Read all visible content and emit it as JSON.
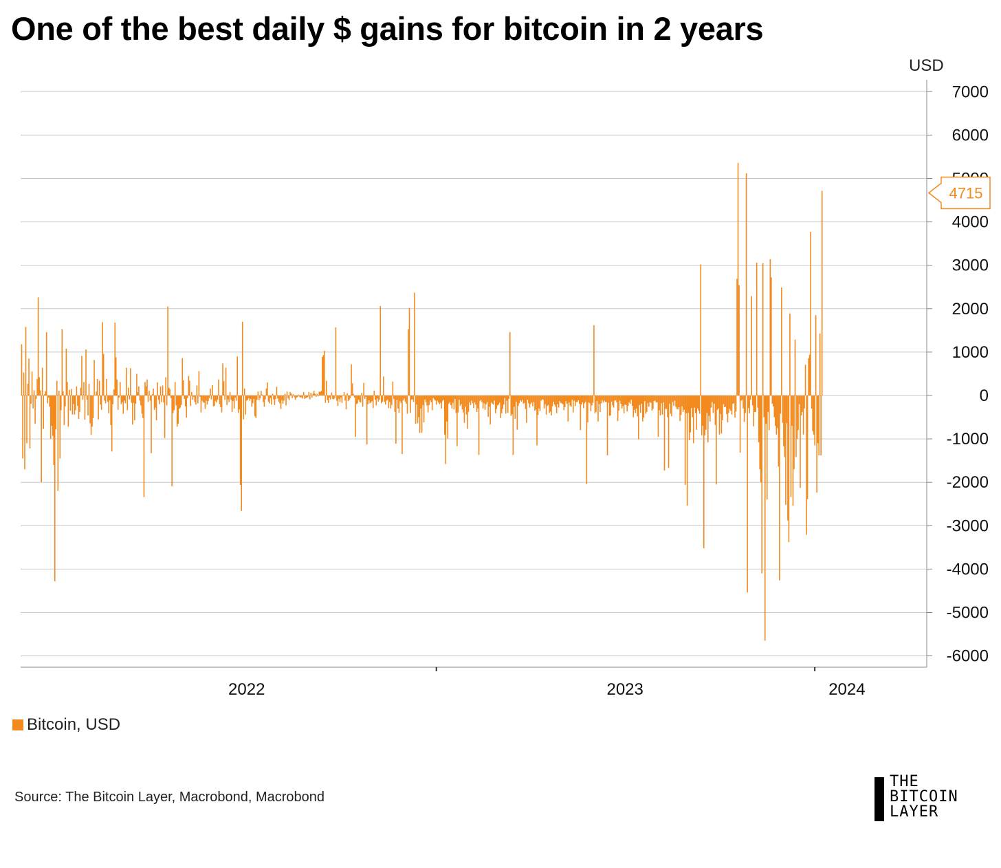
{
  "title": "One of the best daily $ gains for bitcoin in 2 years",
  "source": "Source: The Bitcoin Layer, Macrobond, Macrobond",
  "logo_text": [
    "THE",
    "BITCOIN",
    "LAYER"
  ],
  "colors": {
    "series": "#F28A1E",
    "grid": "#c8c8c8",
    "axis": "#888888"
  },
  "chart_data": {
    "type": "bar",
    "ylabel": "USD",
    "ylim": [
      -6200,
      7300
    ],
    "yticks": [
      7000,
      6000,
      5000,
      4000,
      3000,
      2000,
      1000,
      0,
      -1000,
      -2000,
      -3000,
      -4000,
      -5000,
      -6000
    ],
    "xlim": [
      "2021-11-26",
      "2024-04-18"
    ],
    "xticks": [
      {
        "label": "2022",
        "date": "2022-07-02"
      },
      {
        "label": "2023",
        "date": "2023-07-02"
      },
      {
        "label": "2024",
        "date": "2024-02-01"
      }
    ],
    "legend": [
      {
        "name": "Bitcoin, USD",
        "color": "#F28A1E"
      }
    ],
    "last_value_label": "4715",
    "series": [
      {
        "name": "Bitcoin, USD",
        "x_start": "2021-11-27",
        "x_step_days": 1,
        "values": [
          1180,
          -1450,
          530,
          -1700,
          1580,
          -1100,
          270,
          850,
          -1220,
          -190,
          550,
          -300,
          120,
          -650,
          -80,
          380,
          2260,
          420,
          120,
          -2000,
          640,
          -770,
          30,
          100,
          1460,
          -180,
          -50,
          -260,
          -1000,
          -700,
          -930,
          -1600,
          -4280,
          -780,
          340,
          -2200,
          110,
          -1450,
          -340,
          1530,
          100,
          -680,
          -250,
          1080,
          310,
          -720,
          130,
          -350,
          150,
          -440,
          -200,
          -440,
          -340,
          210,
          -240,
          -540,
          -380,
          180,
          910,
          -100,
          310,
          -560,
          1060,
          -100,
          -460,
          270,
          -640,
          -910,
          -720,
          -520,
          820,
          10,
          90,
          380,
          -550,
          340,
          -210,
          -330,
          1690,
          960,
          -120,
          -180,
          380,
          -140,
          -410,
          -110,
          -680,
          -1290,
          -200,
          140,
          1680,
          880,
          370,
          -330,
          -50,
          310,
          -200,
          -150,
          -420,
          -120,
          -180,
          640,
          -340,
          180,
          -90,
          630,
          -170,
          -670,
          -170,
          -570,
          -190,
          500,
          80,
          210,
          -120,
          -230,
          -420,
          -520,
          -2340,
          310,
          210,
          370,
          -150,
          110,
          -120,
          -1330,
          30,
          160,
          -330,
          -280,
          -570,
          300,
          -100,
          -200,
          210,
          -150,
          230,
          -160,
          -980,
          420,
          -230,
          2050,
          180,
          150,
          -60,
          -2090,
          -400,
          -340,
          310,
          -230,
          -720,
          -650,
          -310,
          -280,
          -220,
          860,
          350,
          -80,
          -250,
          -510,
          -60,
          450,
          340,
          -240,
          80,
          -100,
          -30,
          -150,
          -210,
          230,
          -180,
          560,
          -30,
          -390,
          -120,
          -150,
          -170,
          -310,
          -120,
          -210,
          -130,
          -60,
          160,
          -90,
          240,
          -250,
          -240,
          -130,
          -160,
          -100,
          370,
          -200,
          -270,
          -390,
          740,
          330,
          -100,
          640,
          -220,
          -90,
          -150,
          80,
          -100,
          -380,
          -130,
          -300,
          -50,
          -120,
          900,
          -400,
          -320,
          -2060,
          -2660,
          1700,
          -550,
          160,
          -440,
          -120,
          -100,
          -60,
          -120,
          -80,
          -260,
          -180,
          -80,
          -480,
          -520,
          -100,
          90,
          -110,
          -70,
          110,
          20,
          -150,
          -260,
          -90,
          160,
          300,
          -140,
          -180,
          -60,
          -210,
          40,
          -90,
          -220,
          -80,
          200,
          -70,
          -140,
          -180,
          -310,
          -110,
          -190,
          -120,
          40,
          -230,
          90,
          -70,
          -110,
          80,
          50,
          -60,
          30,
          -40,
          -100,
          -50,
          -40,
          20,
          -30,
          -50,
          -40,
          -70,
          80,
          -80,
          -60,
          -50,
          -40,
          80,
          -90,
          60,
          -50,
          40,
          110,
          40,
          -30,
          40,
          -20,
          90,
          80,
          110,
          890,
          930,
          1030,
          -170,
          340,
          -110,
          -170,
          -50,
          -90,
          70,
          -80,
          -90,
          -60,
          1570,
          -120,
          -240,
          -80,
          -150,
          -50,
          -170,
          -10,
          80,
          -120,
          -320,
          50,
          -130,
          -100,
          -60,
          720,
          280,
          40,
          -50,
          -950,
          -200,
          -180,
          -100,
          -140,
          -160,
          60,
          -260,
          290,
          -80,
          -30,
          -1130,
          -200,
          -110,
          -180,
          -160,
          -130,
          -290,
          110,
          -100,
          -230,
          -70,
          -140,
          -100,
          2060,
          -180,
          -140,
          440,
          -150,
          -210,
          -120,
          -100,
          -290,
          -150,
          -300,
          -220,
          320,
          -80,
          -380,
          -1110,
          -100,
          -300,
          -400,
          -130,
          -170,
          -1350,
          -110,
          -70,
          -140,
          -190,
          -420,
          1530,
          2020,
          -400,
          -100,
          -90,
          -150,
          2370,
          -650,
          -210,
          -640,
          -500,
          -860,
          -300,
          -860,
          -220,
          -620,
          -90,
          -150,
          -230,
          -390,
          -220,
          -110,
          -150,
          -340,
          -60,
          -90,
          -120,
          -210,
          -120,
          -160,
          -200,
          -170,
          -300,
          -130,
          -100,
          -900,
          -1580,
          -600,
          -990,
          -190,
          -150,
          -220,
          -300,
          -170,
          -320,
          -80,
          -400,
          -1170,
          -390,
          -100,
          -240,
          -200,
          -320,
          -390,
          -630,
          -260,
          -440,
          -770,
          -380,
          -160,
          -220,
          -120,
          -180,
          -290,
          -160,
          -210,
          -380,
          -300,
          -1370,
          -130,
          -100,
          -150,
          -300,
          -180,
          -330,
          -200,
          -150,
          -490,
          -260,
          -670,
          -160,
          -190,
          -210,
          -120,
          -410,
          -310,
          -230,
          -210,
          -170,
          -520,
          -410,
          -310,
          -210,
          -60,
          -420,
          -120,
          -400,
          -80,
          1460,
          -470,
          -430,
          -1370,
          -260,
          -540,
          -140,
          -790,
          -240,
          -180,
          -110,
          -140,
          -100,
          -190,
          -170,
          -310,
          -630,
          -100,
          -180,
          -280,
          -200,
          -160,
          -250,
          -150,
          -350,
          -320,
          -1150,
          -450,
          -300,
          -360,
          -120,
          -90,
          -100,
          -300,
          -200,
          -440,
          -240,
          -220,
          -400,
          -370,
          -460,
          -250,
          -140,
          -210,
          -260,
          -410,
          -200,
          -280,
          -130,
          -170,
          -180,
          -200,
          -340,
          -270,
          -130,
          -190,
          -600,
          -160,
          -230,
          -260,
          -100,
          -390,
          -120,
          -240,
          -150,
          -150,
          -110,
          -190,
          -800,
          -210,
          -160,
          -290,
          -180,
          -140,
          -2040,
          -620,
          -160,
          -180,
          -360,
          -230,
          -170,
          1620,
          -410,
          -380,
          -130,
          -600,
          -200,
          -380,
          -180,
          -110,
          -160,
          -120,
          -150,
          -150,
          -1380,
          -170,
          -470,
          -460,
          -140,
          -230,
          -280,
          -120,
          -110,
          -160,
          -590,
          -350,
          -120,
          -190,
          -300,
          -240,
          -410,
          -210,
          -220,
          -370,
          -240,
          -160,
          -190,
          -100,
          -240,
          -500,
          -330,
          -400,
          -300,
          -480,
          -1010,
          -220,
          -400,
          -190,
          -600,
          -510,
          -130,
          -420,
          -380,
          -180,
          -260,
          -150,
          -170,
          -350,
          -310,
          -130,
          -120,
          -160,
          -160,
          -950,
          -340,
          -460,
          -180,
          -440,
          -160,
          -1730,
          -310,
          -310,
          -500,
          -1670,
          -190,
          -420,
          -480,
          -150,
          -240,
          -120,
          -260,
          -310,
          -320,
          -270,
          -590,
          -450,
          -250,
          -380,
          -330,
          -2060,
          -410,
          -2540,
          -400,
          -1030,
          -850,
          -290,
          -500,
          -1100,
          -280,
          -400,
          -790,
          -300,
          -350,
          -420,
          3020,
          -920,
          -700,
          -3520,
          -920,
          -790,
          -400,
          -1080,
          -470,
          -600,
          -280,
          -150,
          -400,
          -190,
          -680,
          -2050,
          -330,
          -300,
          -900,
          -430,
          -880,
          -570,
          -200,
          -270,
          -260,
          -430,
          -620,
          -400,
          -310,
          -350,
          -440,
          -190,
          -180,
          -510,
          -370,
          2690,
          5360,
          2540,
          -1320,
          -120,
          -100,
          -300,
          -610,
          -400,
          5120,
          -4540,
          -290,
          -410,
          -100,
          2290,
          -230,
          -710,
          -380,
          -380,
          3060,
          -280,
          -1080,
          -1700,
          -2000,
          -4100,
          3050,
          -500,
          -5650,
          -650,
          -2400,
          -380,
          -800,
          3140,
          2720,
          -190,
          -250,
          -500,
          -700,
          -900,
          -750,
          -1640,
          -4260,
          -420,
          2490,
          -630,
          -1170,
          -1420,
          -2520,
          -640,
          -2880,
          -3380,
          1890,
          -2340,
          -700,
          -2540,
          -1700,
          1290,
          -1420,
          -1000,
          -800,
          -200,
          -2130,
          -460,
          -380,
          -900,
          -300,
          710,
          -3210,
          -2390,
          860,
          940,
          3770,
          -300,
          -820,
          -900,
          -1150,
          1850,
          -2240,
          -1100,
          -1380,
          1430,
          -1380,
          4715
        ]
      }
    ]
  }
}
